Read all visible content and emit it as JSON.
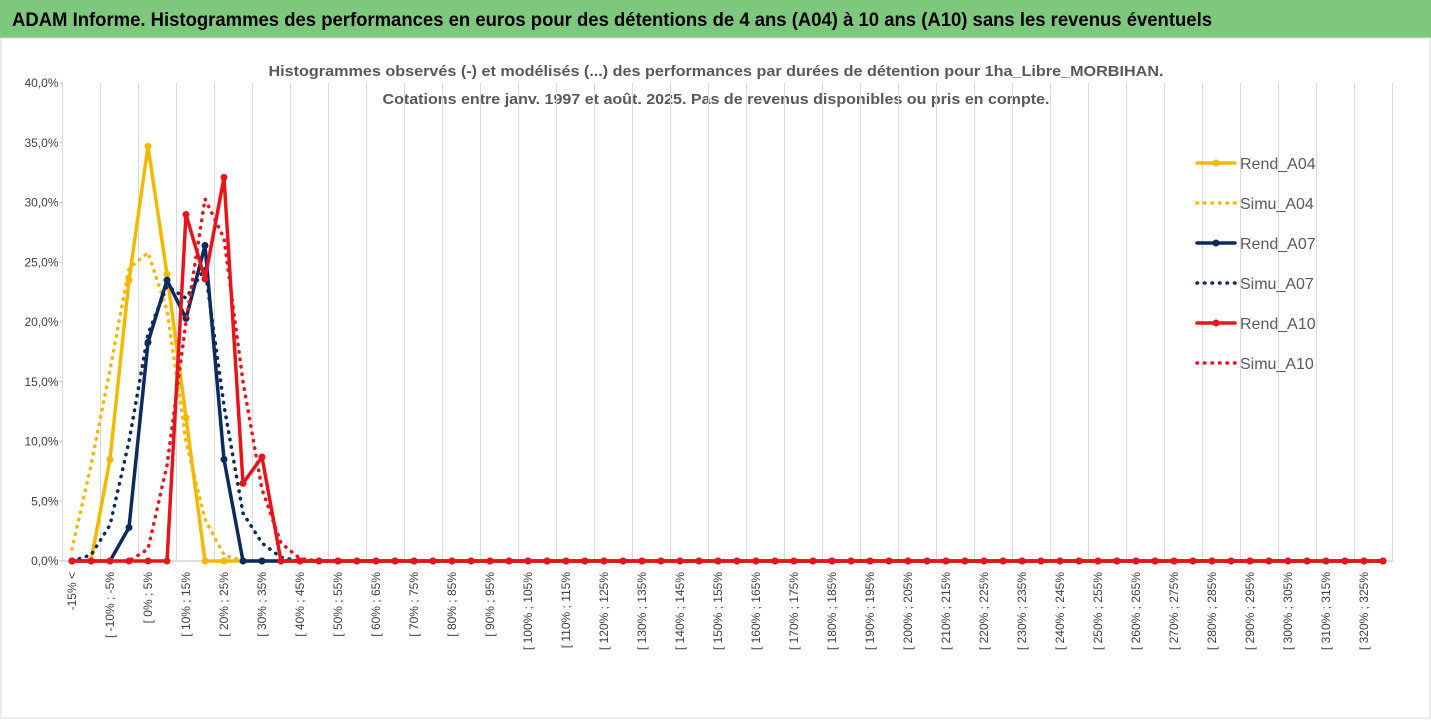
{
  "chart_data": {
    "type": "line",
    "title": "ADAM Informe. Histogrammes des performances en euros pour des détentions de 4 ans (A04) à 10 ans (A10) sans les revenus éventuels",
    "subtitle": [
      "Histogrammes observés (-) et modélisés (...) des performances par durées de détention pour 1ha_Libre_MORBIHAN.",
      "Cotations entre janv. 1997 et août. 2025. Pas de revenus disponibles ou pris en compte."
    ],
    "categories": [
      "-15% <",
      null,
      "[ -10% ; -5%",
      null,
      "[ 0% ; 5%",
      null,
      "[ 10% ; 15%",
      null,
      "[ 20% ; 25%",
      null,
      "[ 30% ; 35%",
      null,
      "[ 40% ; 45%",
      null,
      "[ 50% ; 55%",
      null,
      "[ 60% ; 65%",
      null,
      "[ 70% ; 75%",
      null,
      "[ 80% ; 85%",
      null,
      "[ 90% ; 95%",
      null,
      "[ 100% ; 105%",
      null,
      "[ 110% ; 115%",
      null,
      "[ 120% ; 125%",
      null,
      "[ 130% ; 135%",
      null,
      "[ 140% ; 145%",
      null,
      "[ 150% ; 155%",
      null,
      "[ 160% ; 165%",
      null,
      "[ 170% ; 175%",
      null,
      "[ 180% ; 185%",
      null,
      "[ 190% ; 195%",
      null,
      "[ 200% ; 205%",
      null,
      "[ 210% ; 215%",
      null,
      "[ 220% ; 225%",
      null,
      "[ 230% ; 235%",
      null,
      "[ 240% ; 245%",
      null,
      "[ 250% ; 255%",
      null,
      "[ 260% ; 265%",
      null,
      "[ 270% ; 275%",
      null,
      "[ 280% ; 285%",
      null,
      "[ 290% ; 295%",
      null,
      "[ 300% ; 305%",
      null,
      "[ 310% ; 315%",
      null,
      "[ 320% ; 325%",
      null
    ],
    "series": [
      {
        "name": "Rend_A04",
        "color": "#f5b800",
        "style": "solid",
        "values": [
          0,
          0,
          8.5,
          23.5,
          34.7,
          24,
          12,
          0,
          0,
          0,
          0,
          0,
          0,
          0,
          0,
          0,
          0,
          0,
          0,
          0,
          0,
          0,
          0,
          0,
          0,
          0,
          0,
          0,
          0,
          0,
          0,
          0,
          0,
          0,
          0,
          0,
          0,
          0,
          0,
          0,
          0,
          0,
          0,
          0,
          0,
          0,
          0,
          0,
          0,
          0,
          0,
          0,
          0,
          0,
          0,
          0,
          0,
          0,
          0,
          0,
          0,
          0,
          0,
          0,
          0,
          0,
          0,
          0,
          0,
          0
        ]
      },
      {
        "name": "Simu_A04",
        "color": "#f5b800",
        "style": "dotted",
        "values": [
          1,
          8,
          16,
          24.5,
          25.8,
          21,
          10,
          3.5,
          0.5,
          0,
          0,
          0,
          0,
          0,
          0,
          0,
          0,
          0,
          0,
          0,
          0,
          0,
          0,
          0,
          0,
          0,
          0,
          0,
          0,
          0,
          0,
          0,
          0,
          0,
          0,
          0,
          0,
          0,
          0,
          0,
          0,
          0,
          0,
          0,
          0,
          0,
          0,
          0,
          0,
          0,
          0,
          0,
          0,
          0,
          0,
          0,
          0,
          0,
          0,
          0,
          0,
          0,
          0,
          0,
          0,
          0,
          0,
          0,
          0,
          0
        ]
      },
      {
        "name": "Rend_A07",
        "color": "#0d2a5e",
        "style": "solid",
        "values": [
          0,
          0,
          0,
          2.8,
          18.3,
          23.5,
          20.3,
          26.4,
          8.5,
          0,
          0,
          0,
          0,
          0,
          0,
          0,
          0,
          0,
          0,
          0,
          0,
          0,
          0,
          0,
          0,
          0,
          0,
          0,
          0,
          0,
          0,
          0,
          0,
          0,
          0,
          0,
          0,
          0,
          0,
          0,
          0,
          0,
          0,
          0,
          0,
          0,
          0,
          0,
          0,
          0,
          0,
          0,
          0,
          0,
          0,
          0,
          0,
          0,
          0,
          0,
          0,
          0,
          0,
          0,
          0,
          0,
          0,
          0,
          0,
          0
        ]
      },
      {
        "name": "Simu_A07",
        "color": "#0d2a5e",
        "style": "dotted",
        "values": [
          0,
          0.5,
          3,
          10,
          19,
          23,
          22,
          24.5,
          13,
          4,
          1.5,
          0.3,
          0,
          0,
          0,
          0,
          0,
          0,
          0,
          0,
          0,
          0,
          0,
          0,
          0,
          0,
          0,
          0,
          0,
          0,
          0,
          0,
          0,
          0,
          0,
          0,
          0,
          0,
          0,
          0,
          0,
          0,
          0,
          0,
          0,
          0,
          0,
          0,
          0,
          0,
          0,
          0,
          0,
          0,
          0,
          0,
          0,
          0,
          0,
          0,
          0,
          0,
          0,
          0,
          0,
          0,
          0,
          0,
          0,
          0
        ]
      },
      {
        "name": "Rend_A10",
        "color": "#e8141c",
        "style": "solid",
        "values": [
          0,
          0,
          0,
          0,
          0,
          0,
          29,
          23.6,
          32.1,
          6.5,
          8.7,
          0,
          0,
          0,
          0,
          0,
          0,
          0,
          0,
          0,
          0,
          0,
          0,
          0,
          0,
          0,
          0,
          0,
          0,
          0,
          0,
          0,
          0,
          0,
          0,
          0,
          0,
          0,
          0,
          0,
          0,
          0,
          0,
          0,
          0,
          0,
          0,
          0,
          0,
          0,
          0,
          0,
          0,
          0,
          0,
          0,
          0,
          0,
          0,
          0,
          0,
          0,
          0,
          0,
          0,
          0,
          0,
          0,
          0,
          0
        ]
      },
      {
        "name": "Simu_A10",
        "color": "#e8141c",
        "style": "dotted",
        "values": [
          0,
          0,
          0,
          0,
          1,
          8,
          20,
          30.3,
          27,
          15,
          6,
          1.5,
          0.2,
          0,
          0,
          0,
          0,
          0,
          0,
          0,
          0,
          0,
          0,
          0,
          0,
          0,
          0,
          0,
          0,
          0,
          0,
          0,
          0,
          0,
          0,
          0,
          0,
          0,
          0,
          0,
          0,
          0,
          0,
          0,
          0,
          0,
          0,
          0,
          0,
          0,
          0,
          0,
          0,
          0,
          0,
          0,
          0,
          0,
          0,
          0,
          0,
          0,
          0,
          0,
          0,
          0,
          0,
          0,
          0,
          0
        ]
      }
    ],
    "ylim": [
      0,
      40
    ],
    "yticks": [
      {
        "value": 0,
        "label": "0,0%"
      },
      {
        "value": 5,
        "label": "5,0%"
      },
      {
        "value": 10,
        "label": "10,0%"
      },
      {
        "value": 15,
        "label": "15,0%"
      },
      {
        "value": 20,
        "label": "20,0%"
      },
      {
        "value": 25,
        "label": "25,0%"
      },
      {
        "value": 30,
        "label": "30,0%"
      },
      {
        "value": 35,
        "label": "35,0%"
      },
      {
        "value": 40,
        "label": "40,0%"
      }
    ],
    "grid": "x",
    "legend": "right"
  }
}
